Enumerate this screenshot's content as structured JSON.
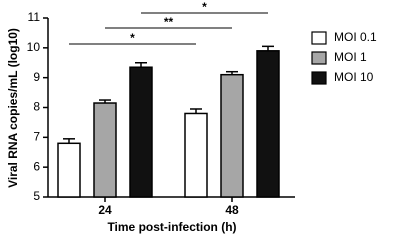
{
  "chart_data": {
    "type": "bar",
    "x_label": "Time post-infection (h)",
    "y_label": "Viral RNA copies/mL (log10)",
    "categories": [
      "24",
      "48"
    ],
    "series": [
      {
        "name": "MOI 0.1",
        "color": "#ffffff",
        "values": [
          6.8,
          7.8
        ],
        "errors": [
          0.15,
          0.15
        ]
      },
      {
        "name": "MOI 1",
        "color": "#a6a6a6",
        "values": [
          8.15,
          9.1
        ],
        "errors": [
          0.1,
          0.1
        ]
      },
      {
        "name": "MOI 10",
        "color": "#111111",
        "values": [
          9.35,
          9.9
        ],
        "errors": [
          0.15,
          0.15
        ]
      }
    ],
    "annotations": [
      {
        "text": "*"
      },
      {
        "text": "**"
      },
      {
        "text": "*"
      }
    ],
    "ylim": [
      5,
      11
    ],
    "yticks": [
      5,
      6,
      7,
      8,
      9,
      10,
      11
    ],
    "grid": false
  }
}
